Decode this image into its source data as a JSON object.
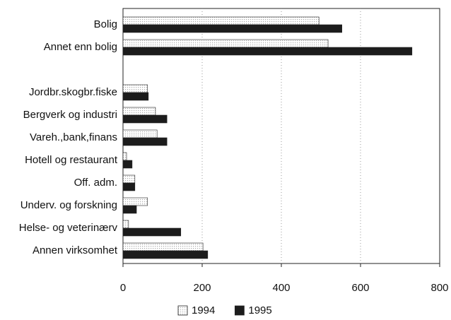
{
  "chart_data": {
    "type": "barh",
    "categories": [
      "Bolig",
      "Annet enn bolig",
      null,
      "Jordbr.skogbr.fiske",
      "Bergverk og industri",
      "Vareh.,bank,finans",
      "Hotell og restaurant",
      "Off. adm.",
      "Underv. og forskning",
      "Helse- og veterinærv",
      "Annen virksomhet"
    ],
    "series": [
      {
        "name": "1994",
        "color": "#e6e6e6",
        "values": [
          495,
          518,
          null,
          62,
          82,
          86,
          9,
          30,
          62,
          14,
          202
        ]
      },
      {
        "name": "1995",
        "color": "#1c1c1c",
        "values": [
          553,
          730,
          null,
          64,
          111,
          111,
          23,
          30,
          34,
          146,
          214
        ]
      }
    ],
    "xlim": [
      0,
      800
    ],
    "xticks": [
      0,
      200,
      400,
      600,
      800
    ],
    "grid": true,
    "legend": "bottom"
  }
}
